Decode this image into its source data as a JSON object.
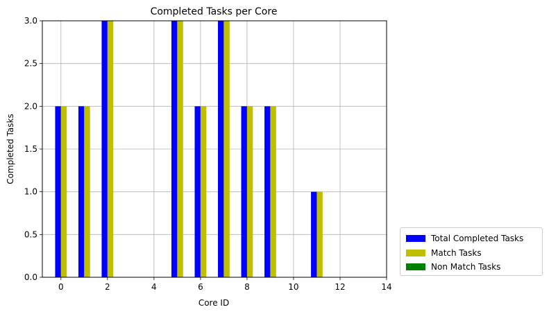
{
  "chart_data": {
    "type": "bar",
    "title": "Completed Tasks per Core",
    "xlabel": "Core ID",
    "ylabel": "Completed Tasks",
    "xlim": [
      -0.8,
      14
    ],
    "ylim": [
      0,
      3
    ],
    "xticks": [
      0,
      2,
      4,
      6,
      8,
      10,
      12,
      14
    ],
    "yticks": [
      "0.0",
      "0.5",
      "1.0",
      "1.5",
      "2.0",
      "2.5",
      "3.0"
    ],
    "grid": true,
    "legend_position": "outside-lower-right",
    "categories": [
      0,
      1,
      2,
      3,
      4,
      5,
      6,
      7,
      8,
      9,
      10,
      11,
      12,
      13
    ],
    "series": [
      {
        "name": "Total Completed Tasks",
        "color": "#0000ff",
        "values": [
          2,
          2,
          3,
          0,
          0,
          3,
          2,
          3,
          2,
          2,
          0,
          1,
          0,
          0
        ]
      },
      {
        "name": "Match Tasks",
        "color": "#bfbf00",
        "values": [
          2,
          2,
          3,
          0,
          0,
          3,
          2,
          3,
          2,
          2,
          0,
          1,
          0,
          0
        ]
      },
      {
        "name": "Non Match Tasks",
        "color": "#008000",
        "values": [
          0,
          0,
          0,
          0,
          0,
          0,
          0,
          0,
          0,
          0,
          0,
          0,
          0,
          0
        ]
      }
    ]
  }
}
